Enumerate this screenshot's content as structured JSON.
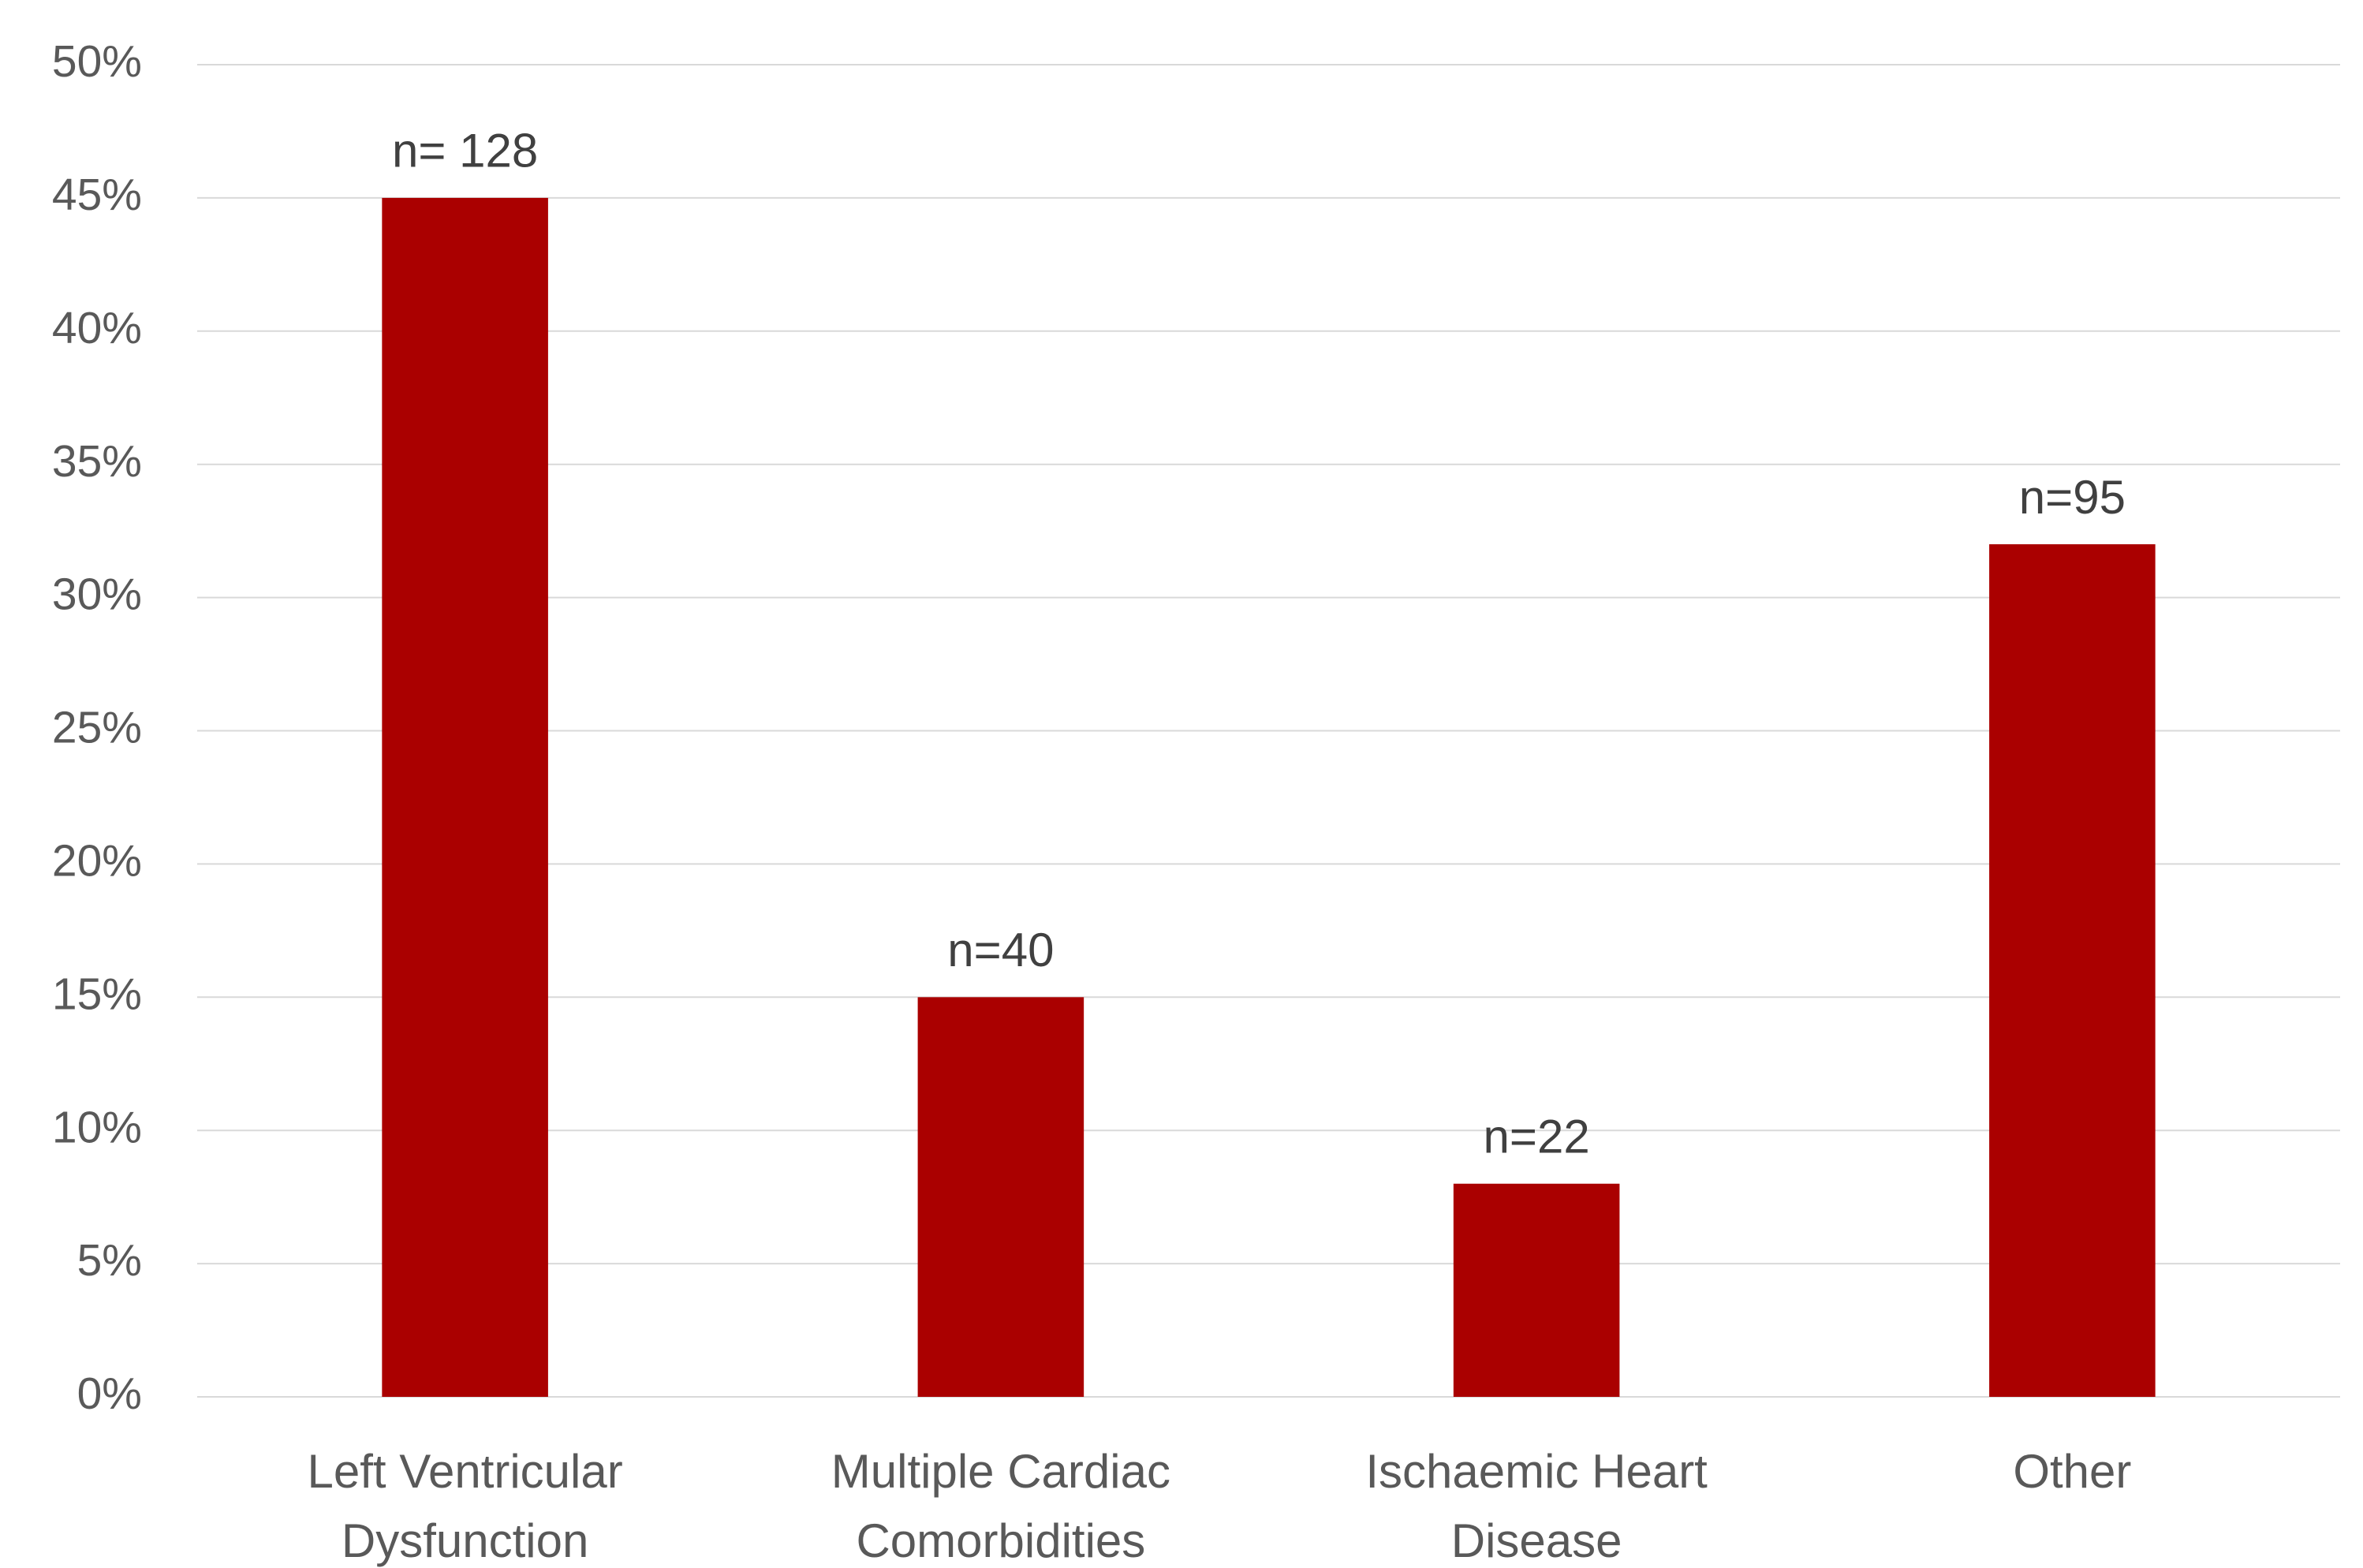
{
  "chart_data": {
    "type": "bar",
    "categories": [
      "Left Ventricular Dysfunction",
      "Multiple Cardiac Comorbidities",
      "Ischaemic Heart Disease",
      "Other"
    ],
    "values": [
      45,
      15,
      8,
      32
    ],
    "bar_annotations": [
      "n= 128",
      "n=40",
      "n=22",
      "n=95"
    ],
    "color": "#aa0000",
    "ylim": [
      0,
      50
    ],
    "yticks": [
      {
        "value": 0,
        "label": "0%"
      },
      {
        "value": 5,
        "label": "5%"
      },
      {
        "value": 10,
        "label": "10%"
      },
      {
        "value": 15,
        "label": "15%"
      },
      {
        "value": 20,
        "label": "20%"
      },
      {
        "value": 25,
        "label": "25%"
      },
      {
        "value": 30,
        "label": "30%"
      },
      {
        "value": 35,
        "label": "35%"
      },
      {
        "value": 40,
        "label": "40%"
      },
      {
        "value": 45,
        "label": "45%"
      },
      {
        "value": 50,
        "label": "50%"
      }
    ],
    "grid": true
  }
}
